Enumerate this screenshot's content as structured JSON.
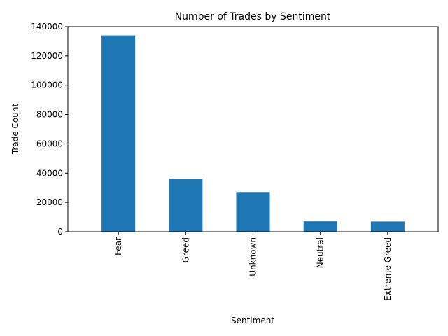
{
  "chart_data": {
    "type": "bar",
    "title": "Number of Trades by Sentiment",
    "xlabel": "Sentiment",
    "ylabel": "Trade Count",
    "categories": [
      "Fear",
      "Greed",
      "Unknown",
      "Neutral",
      "Extreme Greed"
    ],
    "values": [
      134000,
      36200,
      27100,
      7100,
      7000
    ],
    "ylim": [
      0,
      140000
    ],
    "yticks": [
      0,
      20000,
      40000,
      60000,
      80000,
      100000,
      120000,
      140000
    ],
    "grid": false,
    "bar_color": "#1f77b4",
    "x_tick_rotation": "vertical"
  }
}
